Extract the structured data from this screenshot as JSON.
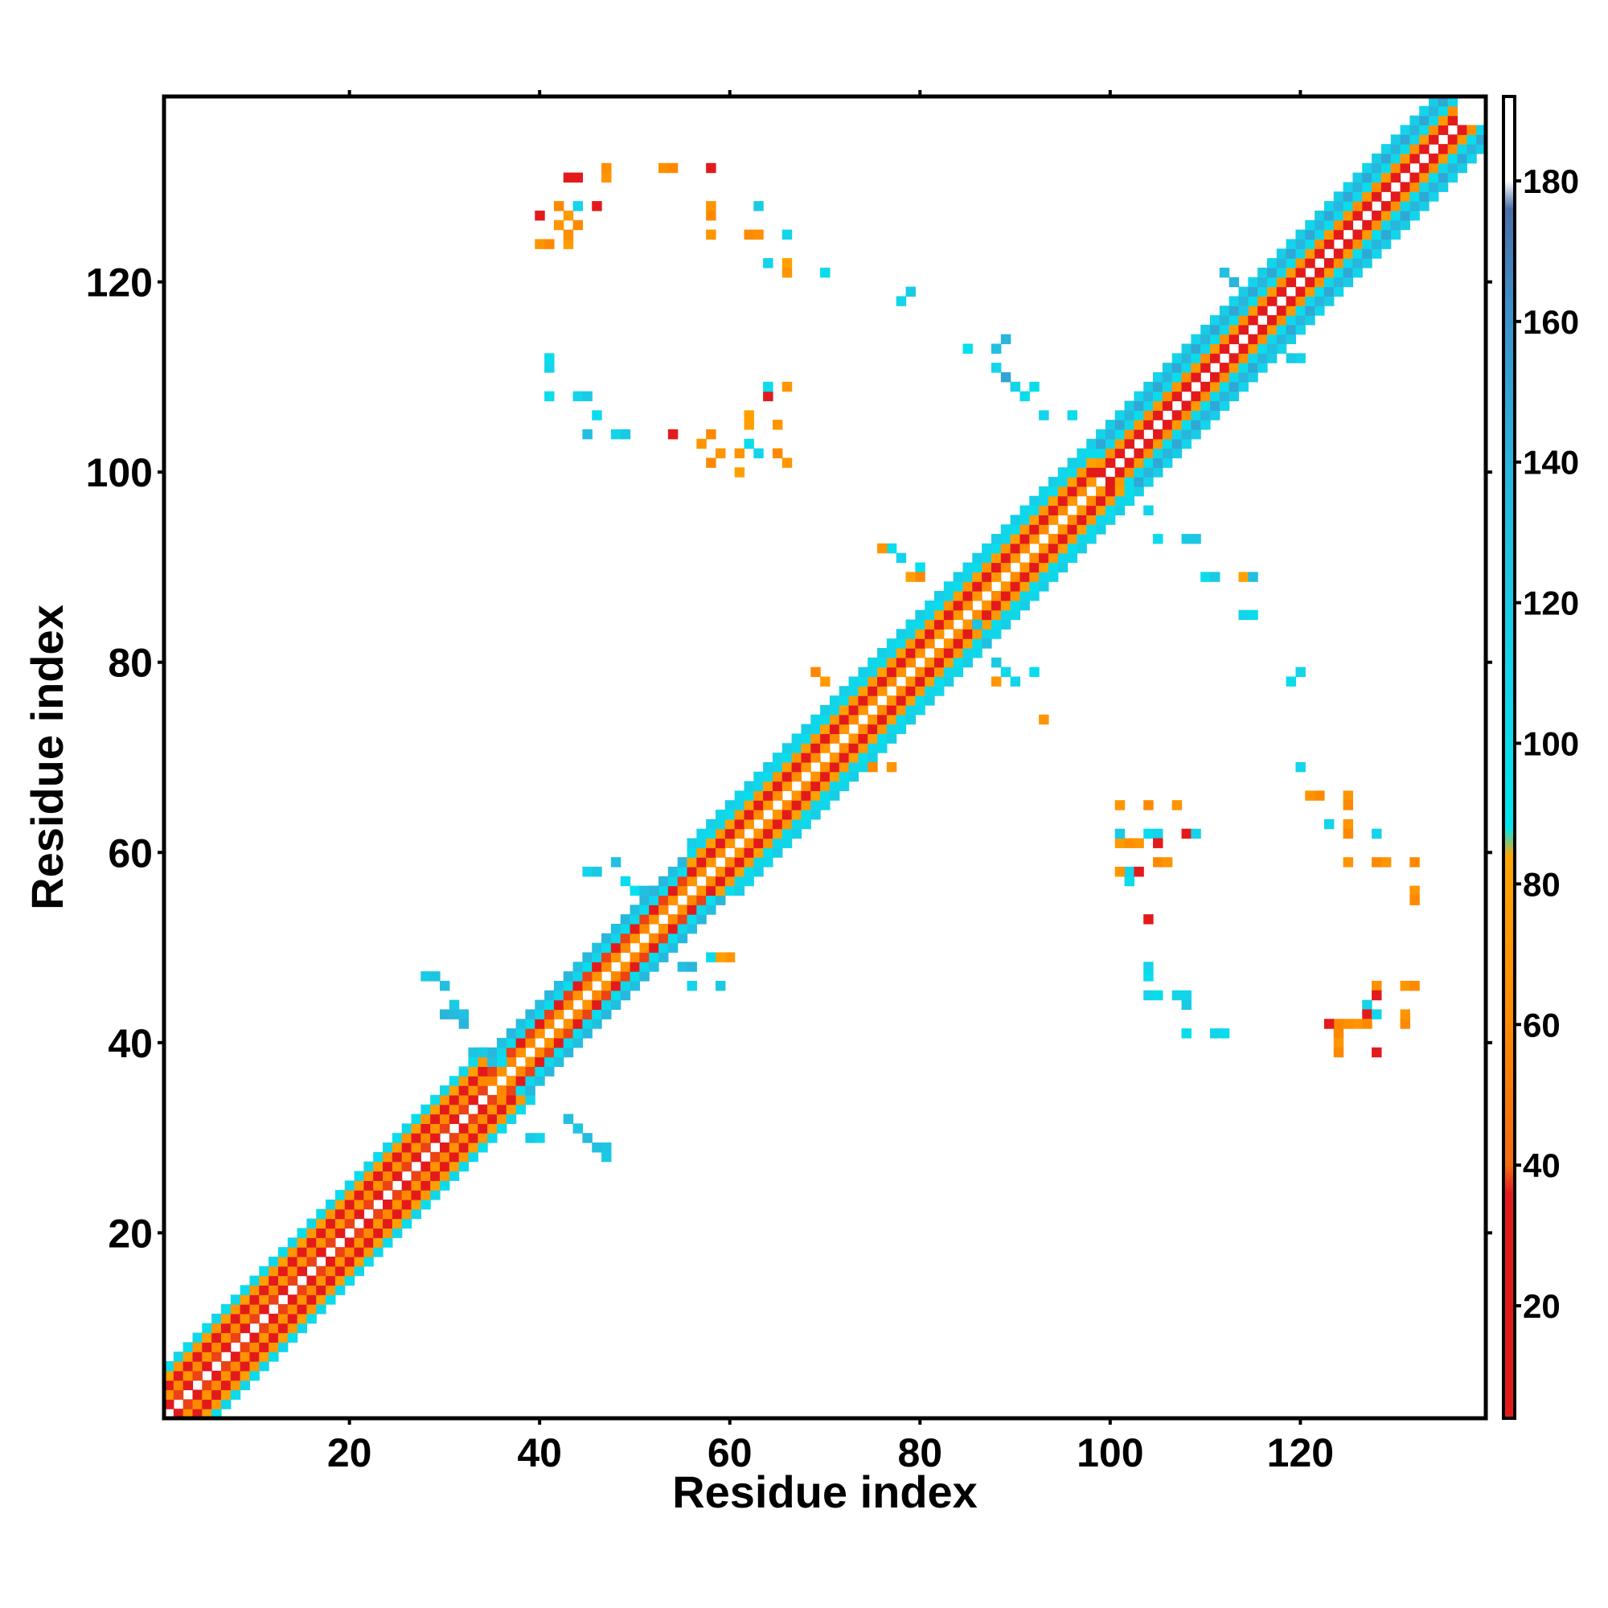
{
  "chart_data": {
    "type": "heatmap",
    "title": "",
    "xlabel": "Residue index",
    "ylabel": "Residue index",
    "xlim": [
      1,
      139
    ],
    "ylim": [
      1,
      139
    ],
    "xticks": [
      20,
      40,
      60,
      80,
      100,
      120
    ],
    "yticks": [
      20,
      40,
      60,
      80,
      100,
      120
    ],
    "colorbar": {
      "range": [
        4,
        192
      ],
      "ticks": [
        20,
        40,
        60,
        80,
        100,
        120,
        140,
        160,
        180
      ],
      "stops": [
        {
          "v": 4,
          "color": "#e31a1c"
        },
        {
          "v": 36,
          "color": "#e31a1c"
        },
        {
          "v": 40,
          "color": "#f36a10"
        },
        {
          "v": 62,
          "color": "#ff8c00"
        },
        {
          "v": 84,
          "color": "#ffa500"
        },
        {
          "v": 88,
          "color": "#00e5ee"
        },
        {
          "v": 110,
          "color": "#13d4ea"
        },
        {
          "v": 140,
          "color": "#29b5dc"
        },
        {
          "v": 162,
          "color": "#3c8fc8"
        },
        {
          "v": 176,
          "color": "#4a6ea8"
        },
        {
          "v": 180,
          "color": "#ffffff"
        },
        {
          "v": 192,
          "color": "#ffffff"
        }
      ]
    },
    "bands": [
      {
        "i0": 1,
        "i1": 34,
        "offsets": [
          [
            1,
            30
          ],
          [
            2,
            60
          ],
          [
            3,
            25
          ],
          [
            4,
            72
          ],
          [
            5,
            100
          ]
        ]
      },
      {
        "i0": 35,
        "i1": 55,
        "offsets": [
          [
            1,
            60
          ],
          [
            2,
            30
          ],
          [
            3,
            100
          ],
          [
            4,
            130
          ]
        ]
      },
      {
        "i0": 56,
        "i1": 98,
        "offsets": [
          [
            1,
            62
          ],
          [
            2,
            28
          ],
          [
            3,
            72
          ],
          [
            4,
            100
          ],
          [
            5,
            108
          ]
        ]
      },
      {
        "i0": 99,
        "i1": 136,
        "offsets": [
          [
            1,
            28
          ],
          [
            2,
            65
          ],
          [
            3,
            100
          ],
          [
            4,
            140
          ],
          [
            5,
            110
          ]
        ]
      }
    ],
    "contacts": [
      [
        28,
        47,
        120
      ],
      [
        29,
        47,
        125
      ],
      [
        30,
        46,
        130
      ],
      [
        30,
        43,
        140
      ],
      [
        31,
        43,
        135
      ],
      [
        32,
        43,
        128
      ],
      [
        31,
        44,
        120
      ],
      [
        32,
        42,
        140
      ],
      [
        33,
        39,
        125
      ],
      [
        34,
        39,
        120
      ],
      [
        35,
        38,
        130
      ],
      [
        36,
        38,
        100
      ],
      [
        39,
        30,
        120
      ],
      [
        40,
        30,
        110
      ],
      [
        43,
        32,
        130
      ],
      [
        44,
        31,
        125
      ],
      [
        45,
        30,
        135
      ],
      [
        46,
        29,
        130
      ],
      [
        47,
        28,
        120
      ],
      [
        47,
        29,
        125
      ],
      [
        45,
        58,
        110
      ],
      [
        46,
        58,
        120
      ],
      [
        49,
        57,
        100
      ],
      [
        50,
        56,
        95
      ],
      [
        51,
        56,
        130
      ],
      [
        52,
        56,
        140
      ],
      [
        48,
        59,
        130
      ],
      [
        58,
        49,
        100
      ],
      [
        59,
        49,
        80
      ],
      [
        60,
        49,
        70
      ],
      [
        56,
        46,
        110
      ],
      [
        59,
        46,
        120
      ],
      [
        55,
        48,
        130
      ],
      [
        56,
        48,
        140
      ],
      [
        69,
        79,
        60
      ],
      [
        70,
        78,
        75
      ],
      [
        75,
        69,
        60
      ],
      [
        77,
        69,
        70
      ],
      [
        77,
        92,
        100
      ],
      [
        78,
        91,
        110
      ],
      [
        76,
        92,
        70
      ],
      [
        80,
        90,
        95
      ],
      [
        79,
        89,
        80
      ],
      [
        80,
        89,
        60
      ],
      [
        88,
        80,
        120
      ],
      [
        89,
        79,
        105
      ],
      [
        88,
        78,
        70
      ],
      [
        92,
        79,
        100
      ],
      [
        90,
        78,
        110
      ],
      [
        93,
        74,
        70
      ],
      [
        86,
        84,
        125
      ],
      [
        87,
        82,
        130
      ],
      [
        104,
        96,
        110
      ],
      [
        105,
        93,
        100
      ],
      [
        108,
        93,
        120
      ],
      [
        109,
        93,
        125
      ],
      [
        110,
        89,
        100
      ],
      [
        111,
        89,
        120
      ],
      [
        114,
        89,
        80
      ],
      [
        115,
        89,
        130
      ],
      [
        114,
        85,
        110
      ],
      [
        115,
        85,
        100
      ],
      [
        119,
        78,
        100
      ],
      [
        120,
        79,
        110
      ],
      [
        78,
        118,
        110
      ],
      [
        79,
        119,
        120
      ],
      [
        85,
        113,
        95
      ],
      [
        88,
        113,
        130
      ],
      [
        89,
        114,
        140
      ],
      [
        88,
        111,
        110
      ],
      [
        89,
        110,
        150
      ],
      [
        90,
        109,
        110
      ],
      [
        92,
        109,
        100
      ],
      [
        93,
        106,
        110
      ],
      [
        96,
        106,
        100
      ],
      [
        91,
        108,
        100
      ],
      [
        112,
        121,
        130
      ],
      [
        113,
        120,
        140
      ],
      [
        114,
        117,
        120
      ],
      [
        117,
        113,
        130
      ],
      [
        119,
        112,
        120
      ],
      [
        120,
        112,
        110
      ],
      [
        41,
        112,
        100
      ],
      [
        41,
        111,
        110
      ],
      [
        41,
        108,
        100
      ],
      [
        44,
        108,
        110
      ],
      [
        45,
        108,
        120
      ],
      [
        45,
        104,
        130
      ],
      [
        46,
        106,
        100
      ],
      [
        48,
        104,
        110
      ],
      [
        49,
        104,
        120
      ],
      [
        54,
        104,
        20
      ],
      [
        57,
        103,
        70
      ],
      [
        58,
        101,
        60
      ],
      [
        58,
        104,
        60
      ],
      [
        59,
        102,
        70
      ],
      [
        61,
        100,
        80
      ],
      [
        61,
        102,
        70
      ],
      [
        62,
        103,
        100
      ],
      [
        63,
        102,
        110
      ],
      [
        65,
        102,
        60
      ],
      [
        66,
        101,
        70
      ],
      [
        62,
        105,
        80
      ],
      [
        65,
        105,
        70
      ],
      [
        62,
        106,
        80
      ],
      [
        64,
        108,
        30
      ],
      [
        64,
        109,
        100
      ],
      [
        66,
        109,
        70
      ],
      [
        40,
        124,
        70
      ],
      [
        41,
        124,
        60
      ],
      [
        43,
        124,
        75
      ],
      [
        43,
        125,
        65
      ],
      [
        42,
        126,
        70
      ],
      [
        44,
        126,
        60
      ],
      [
        43,
        127,
        75
      ],
      [
        44,
        128,
        110
      ],
      [
        42,
        128,
        60
      ],
      [
        46,
        128,
        20
      ],
      [
        43,
        131,
        30
      ],
      [
        44,
        131,
        25
      ],
      [
        47,
        131,
        70
      ],
      [
        47,
        132,
        65
      ],
      [
        40,
        127,
        20
      ],
      [
        53,
        132,
        65
      ],
      [
        54,
        132,
        60
      ],
      [
        58,
        132,
        30
      ],
      [
        58,
        128,
        70
      ],
      [
        58,
        127,
        60
      ],
      [
        58,
        125,
        70
      ],
      [
        62,
        125,
        60
      ],
      [
        63,
        125,
        65
      ],
      [
        66,
        125,
        110
      ],
      [
        63,
        128,
        120
      ],
      [
        64,
        122,
        110
      ],
      [
        66,
        122,
        80
      ],
      [
        66,
        121,
        70
      ],
      [
        70,
        121,
        100
      ],
      [
        101,
        65,
        70
      ],
      [
        104,
        65,
        60
      ],
      [
        107,
        65,
        70
      ],
      [
        101,
        61,
        75
      ],
      [
        102,
        61,
        65
      ],
      [
        103,
        61,
        70
      ],
      [
        101,
        62,
        120
      ],
      [
        104,
        62,
        100
      ],
      [
        105,
        62,
        110
      ],
      [
        105,
        61,
        30
      ],
      [
        108,
        62,
        20
      ],
      [
        109,
        62,
        110
      ],
      [
        105,
        59,
        60
      ],
      [
        106,
        59,
        70
      ],
      [
        102,
        58,
        110
      ],
      [
        102,
        57,
        100
      ],
      [
        101,
        58,
        70
      ],
      [
        103,
        58,
        20
      ],
      [
        104,
        53,
        20
      ],
      [
        104,
        48,
        110
      ],
      [
        104,
        47,
        100
      ],
      [
        104,
        45,
        110
      ],
      [
        105,
        45,
        100
      ],
      [
        107,
        45,
        110
      ],
      [
        108,
        44,
        120
      ],
      [
        108,
        45,
        110
      ],
      [
        108,
        41,
        100
      ],
      [
        111,
        41,
        110
      ],
      [
        112,
        41,
        100
      ],
      [
        120,
        69,
        110
      ],
      [
        121,
        66,
        70
      ],
      [
        122,
        66,
        60
      ],
      [
        125,
        66,
        70
      ],
      [
        125,
        65,
        60
      ],
      [
        123,
        63,
        110
      ],
      [
        125,
        63,
        70
      ],
      [
        125,
        62,
        60
      ],
      [
        128,
        62,
        110
      ],
      [
        125,
        59,
        70
      ],
      [
        128,
        59,
        60
      ],
      [
        129,
        59,
        70
      ],
      [
        132,
        59,
        60
      ],
      [
        132,
        56,
        70
      ],
      [
        132,
        55,
        60
      ],
      [
        128,
        46,
        65
      ],
      [
        131,
        46,
        70
      ],
      [
        132,
        46,
        60
      ],
      [
        128,
        45,
        20
      ],
      [
        127,
        44,
        110
      ],
      [
        127,
        43,
        30
      ],
      [
        124,
        42,
        60
      ],
      [
        125,
        42,
        65
      ],
      [
        126,
        42,
        70
      ],
      [
        127,
        42,
        60
      ],
      [
        123,
        42,
        20
      ],
      [
        128,
        43,
        110
      ],
      [
        131,
        43,
        70
      ],
      [
        131,
        42,
        60
      ],
      [
        124,
        41,
        60
      ],
      [
        124,
        40,
        70
      ],
      [
        124,
        39,
        60
      ],
      [
        128,
        39,
        20
      ]
    ]
  }
}
